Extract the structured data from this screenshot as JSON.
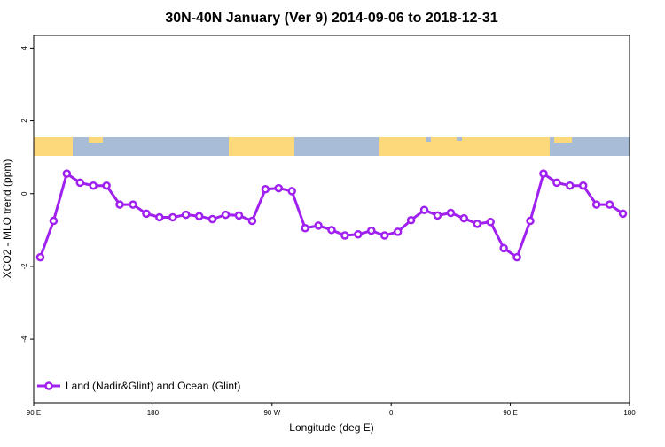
{
  "chart_data": {
    "type": "line",
    "title": "30N-40N January (Ver 9)   2014-09-06 to 2018-12-31",
    "x_label": "Longitude (deg E)",
    "y_label": "XCO2 - MLO trend (ppm)",
    "x": [
      95,
      105,
      115,
      125,
      135,
      145,
      155,
      165,
      175,
      185,
      195,
      205,
      215,
      225,
      235,
      245,
      255,
      265,
      275,
      285,
      295,
      305,
      315,
      325,
      335,
      345,
      355,
      365,
      375,
      385,
      395,
      405,
      415,
      425,
      435,
      445,
      455,
      465,
      475,
      485,
      495,
      505,
      515,
      525,
      535
    ],
    "series": [
      {
        "name": "Land (Nadir&Glint) and Ocean (Glint)",
        "color": "#a020f0",
        "values": [
          -1.75,
          -0.75,
          0.55,
          0.3,
          0.22,
          0.22,
          -0.3,
          -0.3,
          -0.55,
          -0.65,
          -0.65,
          -0.58,
          -0.62,
          -0.7,
          -0.58,
          -0.6,
          -0.75,
          0.12,
          0.15,
          0.07,
          -0.95,
          -0.88,
          -1.0,
          -1.15,
          -1.12,
          -1.02,
          -1.15,
          -1.05,
          -0.73,
          -0.45,
          -0.6,
          -0.53,
          -0.68,
          -0.83,
          -0.78,
          -1.5,
          -1.75,
          -0.75,
          0.55,
          0.3,
          0.22,
          0.22,
          -0.3,
          -0.3,
          -0.55
        ]
      }
    ],
    "xlim": [
      90,
      540
    ],
    "xticks": [
      {
        "value": 90,
        "label": "90 E"
      },
      180,
      {
        "value": 270,
        "label": "90 W"
      },
      {
        "value": 360,
        "label": "0"
      },
      {
        "value": 450,
        "label": "90 E"
      },
      {
        "value": 540,
        "label": "180"
      }
    ],
    "ylim": [
      -5.75,
      4.35
    ],
    "yticks": [
      -4,
      -2,
      0,
      2,
      4
    ],
    "legend": "bottom-left"
  }
}
